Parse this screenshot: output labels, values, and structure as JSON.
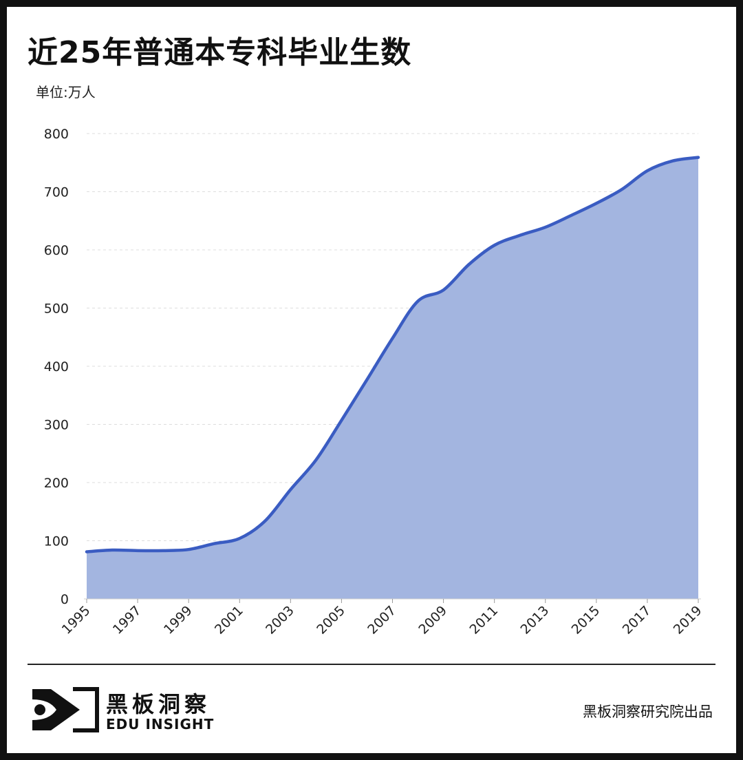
{
  "header": {
    "title": "近25年普通本专科毕业生数",
    "unit": "单位:万人"
  },
  "footer": {
    "brand_cn": "黑板洞察",
    "brand_en": "EDU INSIGHT",
    "credit": "黑板洞察研究院出品"
  },
  "colors": {
    "line": "#3a5cc2",
    "fill": "#a3b5e0",
    "grid": "#dddddd"
  },
  "chart_data": {
    "type": "area",
    "title": "近25年普通本专科毕业生数",
    "ylabel": "单位:万人",
    "xlabel": "",
    "ylim": [
      0,
      800
    ],
    "yticks": [
      0,
      100,
      200,
      300,
      400,
      500,
      600,
      700,
      800
    ],
    "x": [
      1995,
      1996,
      1997,
      1998,
      1999,
      2000,
      2001,
      2002,
      2003,
      2004,
      2005,
      2006,
      2007,
      2008,
      2009,
      2010,
      2011,
      2012,
      2013,
      2014,
      2015,
      2016,
      2017,
      2018,
      2019
    ],
    "xtick_labels": [
      "1995",
      "1997",
      "1999",
      "2001",
      "2003",
      "2005",
      "2007",
      "2009",
      "2011",
      "2013",
      "2015",
      "2017",
      "2019"
    ],
    "series": [
      {
        "values": [
          81,
          84,
          83,
          83,
          85,
          95,
          104,
          134,
          188,
          239,
          307,
          377,
          448,
          512,
          531,
          575,
          608,
          625,
          639,
          659,
          680,
          704,
          736,
          753,
          759
        ]
      }
    ],
    "grid": "horizontal dashed",
    "legend": "none"
  }
}
